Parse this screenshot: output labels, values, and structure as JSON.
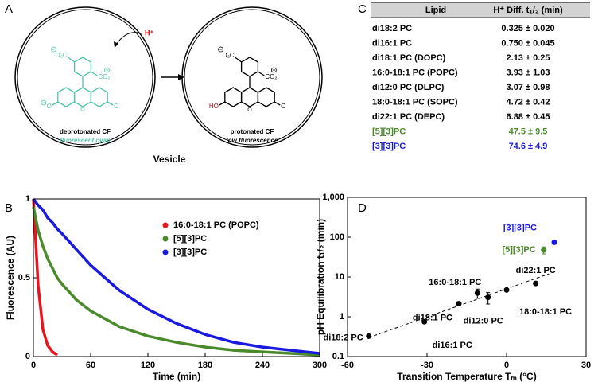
{
  "panel_labels": [
    "A",
    "B",
    "C",
    "D"
  ],
  "diagram": {
    "proton": "H⁺",
    "left_atoms": [
      "O₂C",
      "CO₂",
      "O",
      "O",
      "O"
    ],
    "right_atoms": [
      "O₂C",
      "CO₂",
      "HO",
      "O",
      "O"
    ],
    "left_name": "deprotonated CF",
    "left_note": "fluorescent cyan",
    "right_name": "protonated CF",
    "right_note": "low fluorescence",
    "caption": "Vesicle"
  },
  "table": {
    "header": [
      "Lipid",
      "H⁺ Diff. t₁/₂ (min)"
    ],
    "rows": [
      {
        "cells": [
          "di18:2 PC",
          "0.325 ± 0.020"
        ],
        "color": "#000000"
      },
      {
        "cells": [
          "di16:1 PC",
          "0.750 ± 0.045"
        ],
        "color": "#000000"
      },
      {
        "cells": [
          "di18:1 PC (DOPC)",
          "2.13 ± 0.25"
        ],
        "color": "#000000"
      },
      {
        "cells": [
          "16:0-18:1 PC (POPC)",
          "3.93 ± 1.03"
        ],
        "color": "#000000"
      },
      {
        "cells": [
          "di12:0 PC (DLPC)",
          "3.07 ± 0.98"
        ],
        "color": "#000000"
      },
      {
        "cells": [
          "18:0-18:1 PC (SOPC)",
          "4.72 ± 0.42"
        ],
        "color": "#000000"
      },
      {
        "cells": [
          "di22:1 PC (DEPC)",
          "6.88 ± 0.45"
        ],
        "color": "#000000"
      },
      {
        "cells": [
          "[5][3]PC",
          "47.5 ± 9.5"
        ],
        "color": "#4a8a2a"
      },
      {
        "cells": [
          "[3][3]PC",
          "74.6 ± 4.9"
        ],
        "color": "#1a1adc"
      }
    ]
  },
  "chart_data": [
    {
      "type": "line",
      "x_label": "Time (min)",
      "y_label": "Fluorescence (AU)",
      "x": [
        0,
        5,
        10,
        15,
        20,
        25,
        30,
        45,
        60,
        90,
        120,
        150,
        180,
        210,
        240,
        270,
        300
      ],
      "xlim": [
        0,
        300
      ],
      "xticks": [
        0,
        60,
        120,
        180,
        240,
        300
      ],
      "ylim": [
        0,
        1
      ],
      "yticks": [
        0,
        0.5,
        1
      ],
      "legend": "right",
      "series": [
        {
          "name": "16:0-18:1 PC (POPC)",
          "color": "#e8141e",
          "values": [
            1,
            0.45,
            0.17,
            0.07,
            0.03,
            0.01,
            null,
            null,
            null,
            null,
            null,
            null,
            null,
            null,
            null,
            null,
            null
          ]
        },
        {
          "name": "[5][3]PC",
          "color": "#4a8a2a",
          "values": [
            0.95,
            0.8,
            0.7,
            0.62,
            0.56,
            0.5,
            0.46,
            0.36,
            0.29,
            0.19,
            0.13,
            0.09,
            0.06,
            0.04,
            0.03,
            0.02,
            0.01
          ]
        },
        {
          "name": "[3][3]PC",
          "color": "#1a1adc",
          "values": [
            1,
            0.96,
            0.93,
            0.88,
            0.85,
            0.81,
            0.78,
            0.68,
            0.58,
            0.42,
            0.3,
            0.21,
            0.14,
            0.09,
            0.06,
            0.04,
            0.02
          ]
        }
      ]
    },
    {
      "type": "scatter",
      "x_label": "Transition Temperature Tₘ (°C)",
      "y_label": "pH Equilibration t₁/₂ (min)",
      "xlim": [
        -60,
        30
      ],
      "xticks": [
        -60,
        -30,
        0,
        30
      ],
      "ylim": [
        0.1,
        1000
      ],
      "log_y": true,
      "yticks": [
        0.1,
        1,
        10,
        100,
        {
          "value": 1000,
          "label": "1,000"
        }
      ],
      "series": [
        {
          "color": "#000000",
          "x": [
            -52,
            -31,
            -18,
            -11,
            -7,
            0,
            11
          ],
          "values": [
            0.325,
            0.75,
            2.13,
            3.93,
            3.07,
            4.72,
            6.88
          ],
          "errors": [
            0.02,
            0.045,
            0.25,
            1.03,
            0.98,
            0.42,
            0.45
          ],
          "labels": [
            "di18:2 PC",
            "di16:1 PC",
            "di18:1 PC",
            "16:0-18:1 PC",
            "di12:0 PC",
            "18:0-18:1 PC",
            "di22:1 PC"
          ]
        },
        {
          "color": "#4a8a2a",
          "x": [
            14
          ],
          "values": [
            47.5
          ],
          "errors": [
            9.5
          ],
          "labels": [
            "[5][3]PC"
          ]
        },
        {
          "color": "#1a1adc",
          "x": [
            18
          ],
          "values": [
            74.6
          ],
          "errors": [
            4.9
          ],
          "labels": [
            "[3][3]PC"
          ]
        }
      ],
      "fit": {
        "x": [
          -52,
          16
        ],
        "values": [
          0.3,
          12
        ]
      }
    }
  ]
}
